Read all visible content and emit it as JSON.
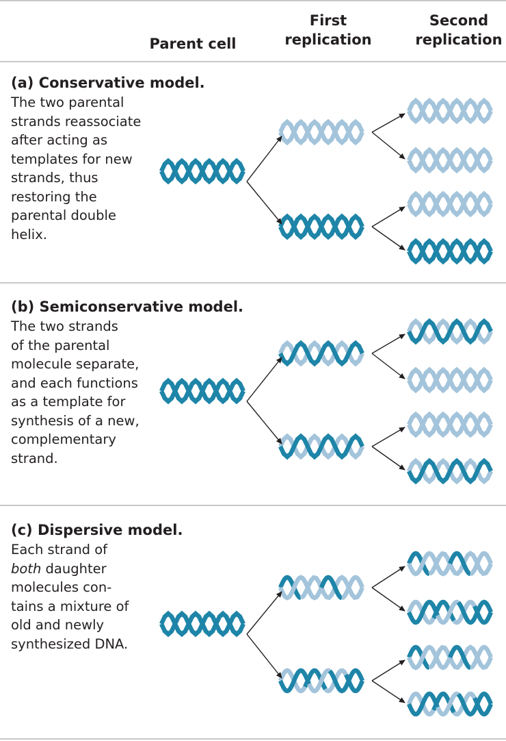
{
  "header": {
    "parent_cell": "Parent cell",
    "first_replication": [
      "First",
      "replication"
    ],
    "second_replication": [
      "Second",
      "replication"
    ]
  },
  "colors": {
    "old_strand": "#1e85a8",
    "new_strand": "#a3c4db",
    "rule": "#c8c8c8",
    "arrow": "#231f20"
  },
  "panels": [
    {
      "id": "conservative",
      "title": "(a) Conservative model.",
      "description_lines": [
        "The two parental",
        "strands reassociate",
        "after acting as",
        "templates for new",
        "strands, thus",
        "restoring the",
        "parental double",
        "helix."
      ],
      "parent": "old",
      "first": [
        "new",
        "old"
      ],
      "second": [
        "new",
        "new",
        "new",
        "old"
      ]
    },
    {
      "id": "semiconservative",
      "title": "(b) Semiconservative model.",
      "description_lines": [
        "The two strands",
        "of the parental",
        "molecule separate,",
        "and each functions",
        "as a template for",
        "synthesis of a new,",
        "complementary",
        "strand."
      ],
      "parent": "old",
      "first": [
        "hybrid",
        "hybrid"
      ],
      "second": [
        "hybrid",
        "new",
        "new",
        "hybrid"
      ]
    },
    {
      "id": "dispersive",
      "title": "(c) Dispersive model.",
      "description_lines": [
        "Each strand of",
        "both daughter",
        "molecules con-",
        "tains a mixture of",
        "old and newly",
        "synthesized DNA."
      ],
      "italic_word": "both",
      "parent": "old",
      "first": [
        "mixed",
        "mixed"
      ],
      "second": [
        "mixed",
        "mixed",
        "mixed",
        "mixed"
      ]
    }
  ]
}
